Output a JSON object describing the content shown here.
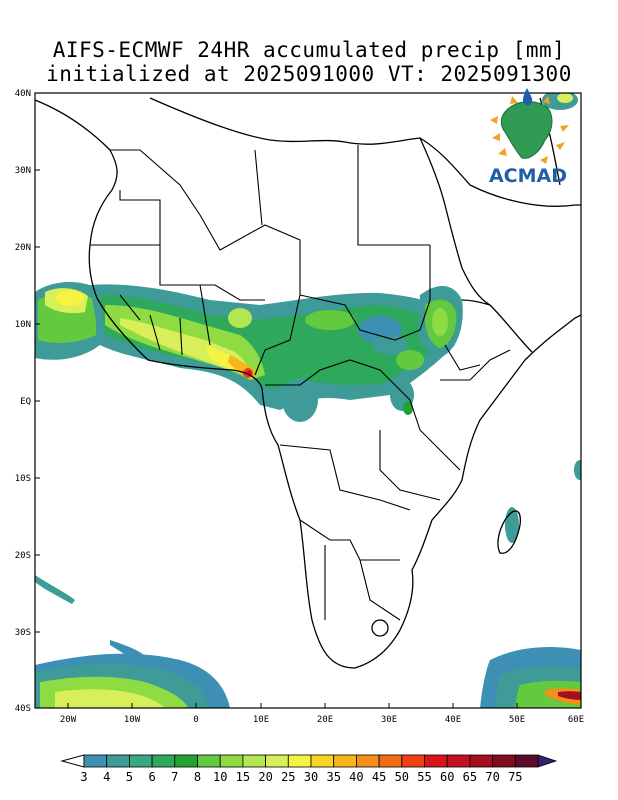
{
  "title": {
    "line1": "AIFS-ECMWF 24HR accumulated precip [mm]",
    "line2": "initialized at 2025091000 VT: 2025091300"
  },
  "map": {
    "lon_range": [
      -25,
      60
    ],
    "lat_range": [
      -40,
      40
    ],
    "lat_ticks": [
      "40N",
      "30N",
      "20N",
      "10N",
      "EQ",
      "10S",
      "20S",
      "30S",
      "40S"
    ],
    "lon_ticks": [
      "20W",
      "10W",
      "0",
      "10E",
      "20E",
      "30E",
      "40E",
      "50E",
      "60E"
    ],
    "logo_text": "ACMAD"
  },
  "colorbar": {
    "labels": [
      "3",
      "4",
      "5",
      "6",
      "7",
      "8",
      "10",
      "15",
      "20",
      "25",
      "30",
      "35",
      "40",
      "45",
      "50",
      "55",
      "60",
      "65",
      "70",
      "75"
    ],
    "colors": [
      "#3d8fb3",
      "#3e9b98",
      "#39a782",
      "#2ea95b",
      "#22a233",
      "#63c93e",
      "#8edb44",
      "#b4e653",
      "#d9ef5a",
      "#f6f342",
      "#fad620",
      "#f8b51a",
      "#f58f17",
      "#f26d16",
      "#ee4014",
      "#d9141c",
      "#c31022",
      "#a30e20",
      "#830c1c",
      "#5e0a2c",
      "#3a1d6e"
    ]
  }
}
